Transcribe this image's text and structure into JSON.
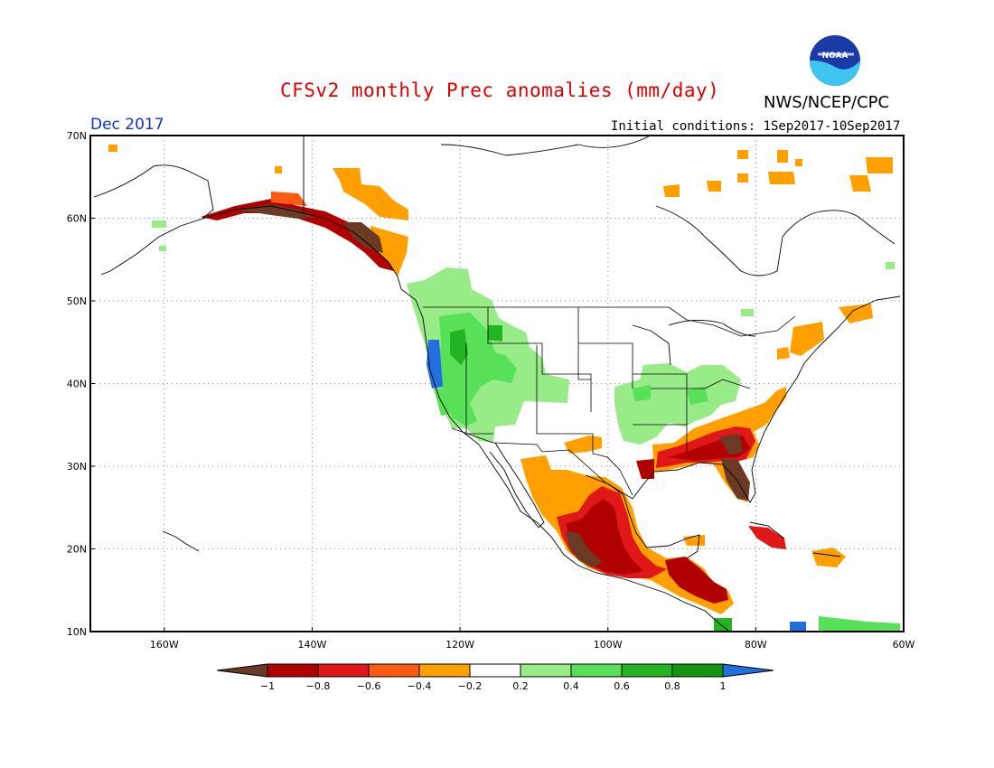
{
  "header": {
    "title": "CFSv2 monthly Prec anomalies (mm/day)",
    "agency": "NWS/NCEP/CPC",
    "logo_text": "NOAA",
    "month": "Dec 2017",
    "initial_conditions": "Initial conditions: 1Sep2017-10Sep2017"
  },
  "map": {
    "lon_range": [
      -170,
      -60
    ],
    "lat_range": [
      10,
      70
    ],
    "lat_ticks": [
      {
        "value": 70,
        "label": "70N"
      },
      {
        "value": 60,
        "label": "60N"
      },
      {
        "value": 50,
        "label": "50N"
      },
      {
        "value": 40,
        "label": "40N"
      },
      {
        "value": 30,
        "label": "30N"
      },
      {
        "value": 20,
        "label": "20N"
      },
      {
        "value": 10,
        "label": "10N"
      }
    ],
    "lon_ticks": [
      {
        "value": -160,
        "label": "160W"
      },
      {
        "value": -140,
        "label": "140W"
      },
      {
        "value": -120,
        "label": "120W"
      },
      {
        "value": -100,
        "label": "100W"
      },
      {
        "value": -80,
        "label": "80W"
      },
      {
        "value": -60,
        "label": "60W"
      }
    ],
    "grid": true
  },
  "colorbar": {
    "labels": [
      "-1",
      "-0.8",
      "-0.6",
      "-0.4",
      "-0.2",
      "0.2",
      "0.4",
      "0.6",
      "0.8",
      "1"
    ],
    "colors": [
      "#6b3a24",
      "#b00000",
      "#e01818",
      "#ff5a10",
      "#ffa000",
      "#ffffff",
      "#98ec88",
      "#58e058",
      "#22b422",
      "#129612",
      "#2270e0"
    ]
  },
  "anomaly_regions": [
    {
      "name": "Southeast US / Florida",
      "color": "#6b3a24"
    },
    {
      "name": "Gulf coast",
      "color": "#b00000"
    },
    {
      "name": "Mexico west coast",
      "color": "#b00000"
    },
    {
      "name": "Southern Alaska coast",
      "color": "#b00000"
    },
    {
      "name": "Pacific Northwest coast",
      "color": "#2270e0"
    },
    {
      "name": "Northern Rockies",
      "color": "#58e058"
    },
    {
      "name": "Ohio Valley",
      "color": "#98ec88"
    }
  ]
}
